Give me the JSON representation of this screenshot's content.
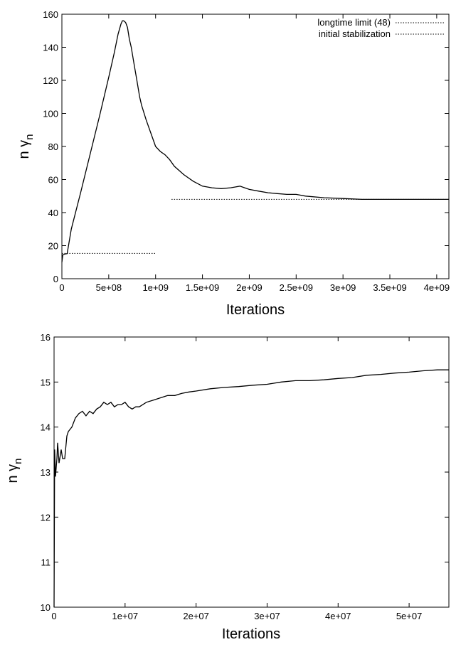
{
  "chart_data": [
    {
      "type": "line",
      "xlabel": "Iterations",
      "ylabel": "n γ",
      "ylabel_subscript": "n",
      "xlim": [
        0,
        4130000000
      ],
      "ylim": [
        0,
        160
      ],
      "x_ticks": [
        0,
        500000000,
        1000000000,
        1500000000,
        2000000000,
        2500000000,
        3000000000,
        3500000000,
        4000000000
      ],
      "x_tick_labels": [
        "0",
        "5e+08",
        "1e+09",
        "1.5e+09",
        "2e+09",
        "2.5e+09",
        "3e+09",
        "3.5e+09",
        "4e+09"
      ],
      "y_ticks": [
        0,
        20,
        40,
        60,
        80,
        100,
        120,
        140,
        160
      ],
      "y_tick_labels": [
        "0",
        "20",
        "40",
        "60",
        "80",
        "100",
        "120",
        "140",
        "160"
      ],
      "grid": false,
      "legend": "top-right",
      "series": [
        {
          "style": "solid",
          "x": [
            0,
            10000000,
            30000000,
            56000000,
            100000000,
            200000000,
            300000000,
            400000000,
            500000000,
            560000000,
            600000000,
            630000000,
            645000000,
            660000000,
            680000000,
            700000000,
            720000000,
            740000000,
            770000000,
            800000000,
            830000000,
            850000000,
            900000000,
            950000000,
            1000000000,
            1050000000,
            1100000000,
            1150000000,
            1200000000,
            1300000000,
            1400000000,
            1500000000,
            1600000000,
            1700000000,
            1800000000,
            1850000000,
            1900000000,
            1950000000,
            2000000000,
            2100000000,
            2200000000,
            2300000000,
            2400000000,
            2500000000,
            2600000000,
            2800000000,
            3000000000,
            3200000000,
            3400000000,
            3600000000,
            3800000000,
            4000000000,
            4130000000
          ],
          "y": [
            10,
            14.5,
            14.9,
            15.2,
            30,
            52,
            75,
            98,
            122,
            137,
            148,
            154,
            156,
            156,
            155,
            152,
            145,
            140,
            130,
            120,
            110,
            105,
            96,
            88,
            80,
            77,
            75,
            72,
            68,
            63,
            59,
            56,
            55,
            54.5,
            55,
            55.5,
            56,
            55,
            54,
            53,
            52,
            51.5,
            51,
            51,
            50,
            49,
            48.5,
            48,
            48,
            48,
            48,
            48,
            48
          ]
        },
        {
          "name": "longtime limit (48)",
          "style": "dotted",
          "x": [
            1170000000,
            4130000000
          ],
          "y": [
            48,
            48
          ]
        },
        {
          "name": "initial stabilization",
          "style": "dotted",
          "x": [
            0,
            1000000000
          ],
          "y": [
            15.3,
            15.3
          ]
        }
      ]
    },
    {
      "type": "line",
      "xlabel": "Iterations",
      "ylabel": "n γ",
      "ylabel_subscript": "n",
      "xlim": [
        0,
        55600000
      ],
      "ylim": [
        10,
        16
      ],
      "x_ticks": [
        0,
        10000000,
        20000000,
        30000000,
        40000000,
        50000000
      ],
      "x_tick_labels": [
        "0",
        "1e+07",
        "2e+07",
        "3e+07",
        "4e+07",
        "5e+07"
      ],
      "y_ticks": [
        10,
        11,
        12,
        13,
        14,
        15,
        16
      ],
      "y_tick_labels": [
        "10",
        "11",
        "12",
        "13",
        "14",
        "15",
        "16"
      ],
      "grid": false,
      "series": [
        {
          "style": "solid",
          "x": [
            0,
            80000,
            200000,
            400000,
            500000,
            700000,
            1000000,
            1200000,
            1500000,
            1800000,
            2000000,
            2500000,
            3000000,
            3500000,
            4000000,
            4500000,
            5000000,
            5500000,
            6000000,
            6500000,
            7000000,
            7500000,
            8000000,
            8500000,
            9000000,
            9500000,
            10000000,
            10500000,
            11000000,
            11500000,
            12000000,
            13000000,
            14000000,
            15000000,
            16000000,
            17000000,
            18000000,
            19000000,
            20000000,
            22000000,
            24000000,
            26000000,
            28000000,
            30000000,
            32000000,
            34000000,
            36000000,
            38000000,
            40000000,
            42000000,
            44000000,
            46000000,
            48000000,
            50000000,
            52000000,
            54000000,
            55600000
          ],
          "y": [
            10,
            13.5,
            12.9,
            13.3,
            13.65,
            13.2,
            13.5,
            13.3,
            13.3,
            13.8,
            13.9,
            14.0,
            14.2,
            14.3,
            14.35,
            14.25,
            14.35,
            14.3,
            14.4,
            14.45,
            14.55,
            14.5,
            14.55,
            14.45,
            14.5,
            14.5,
            14.55,
            14.45,
            14.4,
            14.45,
            14.45,
            14.55,
            14.6,
            14.65,
            14.7,
            14.7,
            14.75,
            14.78,
            14.8,
            14.85,
            14.88,
            14.9,
            14.93,
            14.95,
            15.0,
            15.03,
            15.03,
            15.05,
            15.08,
            15.1,
            15.15,
            15.17,
            15.2,
            15.22,
            15.25,
            15.27,
            15.27
          ]
        }
      ]
    }
  ]
}
